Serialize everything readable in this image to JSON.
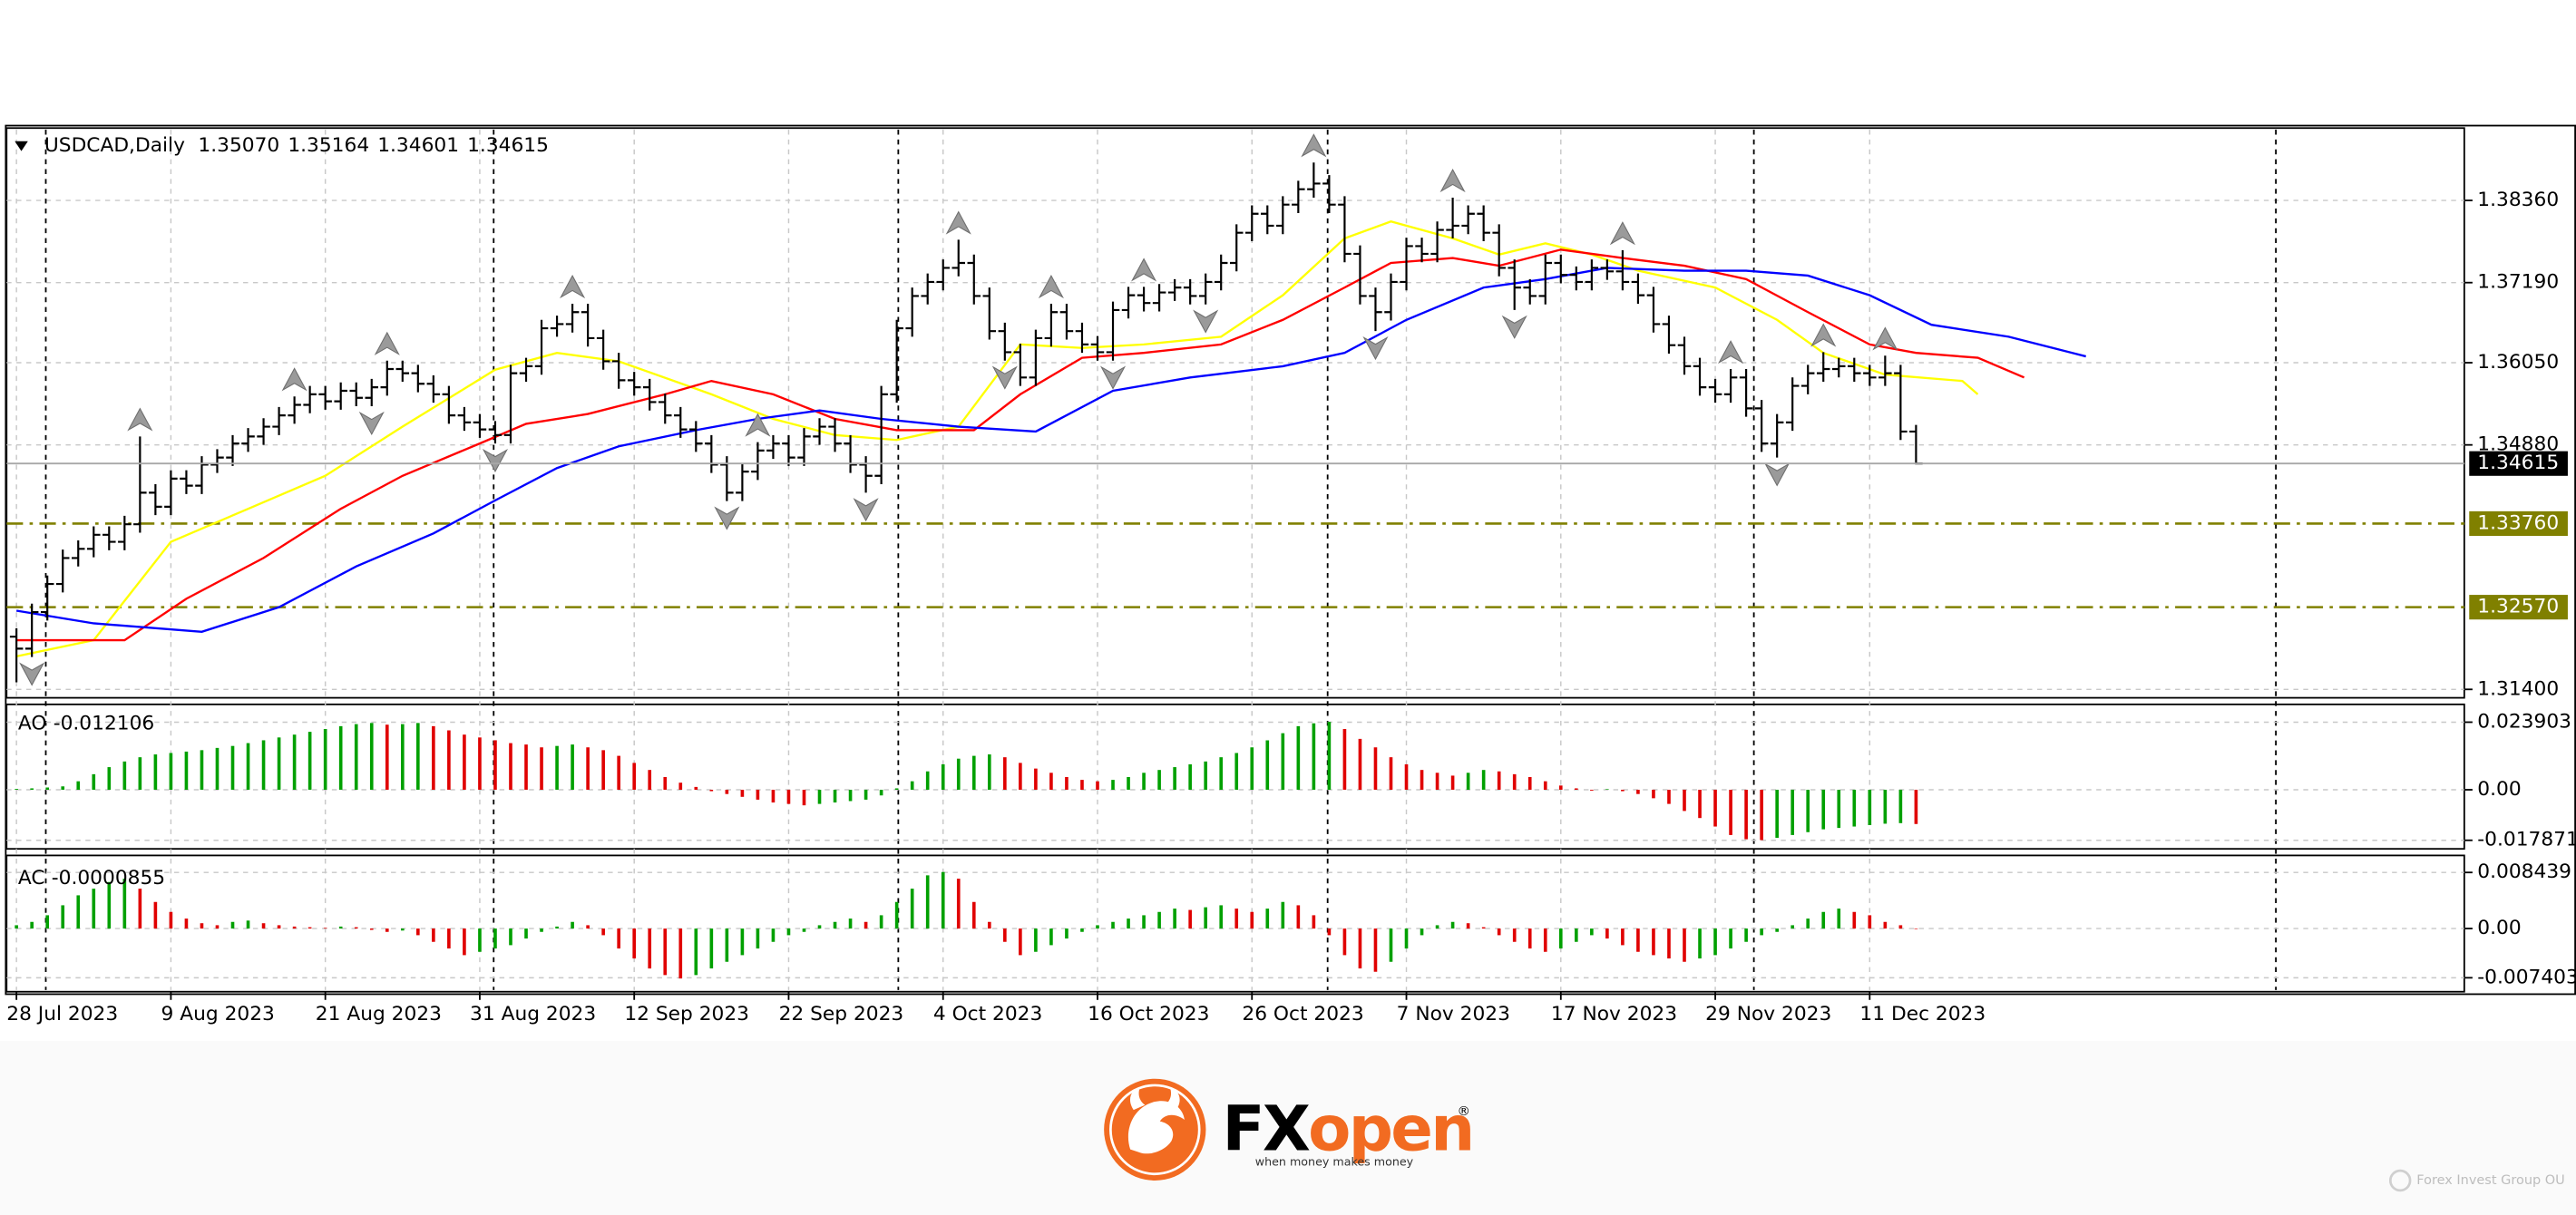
{
  "chart_data": {
    "type": "ohlc",
    "legend_text": "USDCAD,Daily",
    "ohlc_labels": [
      "1.35070",
      "1.35164",
      "1.34601",
      "1.34615"
    ],
    "xlim": [
      -0.64,
      158.5
    ],
    "ylim": [
      1.3128,
      1.3939
    ],
    "yticks": [
      {
        "value": 1.3836,
        "label": "1.38360"
      },
      {
        "value": 1.3719,
        "label": "1.37190"
      },
      {
        "value": 1.3605,
        "label": "1.36050"
      },
      {
        "value": 1.3488,
        "label": "1.34880"
      },
      {
        "value": 1.314,
        "label": "1.31400"
      }
    ],
    "grid": true,
    "x_labels": [
      {
        "value": 0,
        "label": "28 Jul 2023"
      },
      {
        "value": 10,
        "label": "9 Aug 2023"
      },
      {
        "value": 20,
        "label": "21 Aug 2023"
      },
      {
        "value": 30,
        "label": "31 Aug 2023"
      },
      {
        "value": 40,
        "label": "12 Sep 2023"
      },
      {
        "value": 50,
        "label": "22 Sep 2023"
      },
      {
        "value": 60,
        "label": "4 Oct 2023"
      },
      {
        "value": 70,
        "label": "16 Oct 2023"
      },
      {
        "value": 80,
        "label": "26 Oct 2023"
      },
      {
        "value": 90,
        "label": "7 Nov 2023"
      },
      {
        "value": 100,
        "label": "17 Nov 2023"
      },
      {
        "value": 110,
        "label": "29 Nov 2023"
      },
      {
        "value": 120,
        "label": "11 Dec 2023"
      }
    ],
    "separators": [
      1.9,
      30.9,
      57.1,
      84.9,
      112.5,
      146.3
    ],
    "bars": {
      "color": "#000000",
      "open": [
        1.3215,
        1.3198,
        1.325,
        1.329,
        1.3327,
        1.334,
        1.336,
        1.335,
        1.3375,
        1.342,
        1.34,
        1.344,
        1.343,
        1.346,
        1.347,
        1.349,
        1.35,
        1.3514,
        1.353,
        1.3545,
        1.356,
        1.355,
        1.3565,
        1.3555,
        1.357,
        1.3596,
        1.359,
        1.3575,
        1.356,
        1.353,
        1.352,
        1.351,
        1.3502,
        1.359,
        1.36,
        1.3654,
        1.366,
        1.3677,
        1.364,
        1.3607,
        1.358,
        1.357,
        1.3549,
        1.353,
        1.351,
        1.349,
        1.346,
        1.342,
        1.345,
        1.348,
        1.349,
        1.347,
        1.35,
        1.3514,
        1.349,
        1.346,
        1.3444,
        1.356,
        1.3654,
        1.37,
        1.372,
        1.374,
        1.3747,
        1.37,
        1.365,
        1.362,
        1.3584,
        1.364,
        1.3677,
        1.365,
        1.3631,
        1.362,
        1.368,
        1.3701,
        1.369,
        1.3705,
        1.3712,
        1.37,
        1.372,
        1.3747,
        1.379,
        1.3817,
        1.38,
        1.383,
        1.3852,
        1.386,
        1.383,
        1.376,
        1.37,
        1.3677,
        1.372,
        1.3771,
        1.376,
        1.3794,
        1.38,
        1.3817,
        1.379,
        1.374,
        1.3712,
        1.37,
        1.3747,
        1.373,
        1.372,
        1.374,
        1.3735,
        1.372,
        1.3701,
        1.366,
        1.363,
        1.36,
        1.357,
        1.356,
        1.3584,
        1.354,
        1.349,
        1.352,
        1.3572,
        1.359,
        1.3596,
        1.36,
        1.359,
        1.3584,
        1.359,
        1.3507
      ],
      "high": [
        1.3227,
        1.3262,
        1.3302,
        1.3339,
        1.3352,
        1.3372,
        1.3372,
        1.3387,
        1.35,
        1.3432,
        1.3452,
        1.3452,
        1.3472,
        1.3482,
        1.3502,
        1.3512,
        1.3526,
        1.3542,
        1.3557,
        1.3572,
        1.3572,
        1.3577,
        1.3577,
        1.3582,
        1.3608,
        1.3608,
        1.3602,
        1.3587,
        1.3572,
        1.3542,
        1.3532,
        1.3522,
        1.3602,
        1.3612,
        1.3666,
        1.3672,
        1.3689,
        1.3689,
        1.3652,
        1.3619,
        1.3592,
        1.3582,
        1.3561,
        1.3542,
        1.3522,
        1.3502,
        1.3472,
        1.3462,
        1.3492,
        1.3502,
        1.3502,
        1.3512,
        1.3526,
        1.3526,
        1.3502,
        1.3472,
        1.3572,
        1.3666,
        1.3712,
        1.3732,
        1.3752,
        1.378,
        1.3759,
        1.3712,
        1.3662,
        1.3632,
        1.3652,
        1.3689,
        1.3689,
        1.3662,
        1.3643,
        1.3692,
        1.3713,
        1.3713,
        1.3717,
        1.3724,
        1.3724,
        1.3732,
        1.3759,
        1.3802,
        1.3829,
        1.3829,
        1.3842,
        1.3864,
        1.389,
        1.3872,
        1.3842,
        1.3772,
        1.3712,
        1.3732,
        1.3783,
        1.3783,
        1.3806,
        1.384,
        1.3829,
        1.3829,
        1.3802,
        1.3752,
        1.3724,
        1.3759,
        1.3759,
        1.3742,
        1.3752,
        1.3752,
        1.3765,
        1.3732,
        1.3713,
        1.3672,
        1.3642,
        1.3612,
        1.3582,
        1.3596,
        1.3596,
        1.3552,
        1.3532,
        1.3584,
        1.3602,
        1.362,
        1.3612,
        1.3612,
        1.3602,
        1.3615,
        1.3602,
        1.35164
      ],
      "low": [
        1.315,
        1.3186,
        1.3238,
        1.3278,
        1.3315,
        1.3328,
        1.3338,
        1.3338,
        1.3363,
        1.3388,
        1.3388,
        1.3418,
        1.3418,
        1.3448,
        1.3458,
        1.3478,
        1.3488,
        1.3502,
        1.3518,
        1.3533,
        1.3538,
        1.3538,
        1.3543,
        1.3543,
        1.3558,
        1.3578,
        1.3563,
        1.3548,
        1.3518,
        1.3508,
        1.3498,
        1.349,
        1.349,
        1.3578,
        1.3588,
        1.3642,
        1.3648,
        1.3628,
        1.3595,
        1.3568,
        1.3558,
        1.3537,
        1.3518,
        1.3498,
        1.3478,
        1.3448,
        1.3408,
        1.3408,
        1.3438,
        1.3468,
        1.3458,
        1.3458,
        1.3488,
        1.3478,
        1.3448,
        1.342,
        1.3432,
        1.3548,
        1.3642,
        1.3688,
        1.3708,
        1.3728,
        1.3688,
        1.3638,
        1.3608,
        1.3572,
        1.3572,
        1.3628,
        1.3638,
        1.3619,
        1.3608,
        1.3608,
        1.3668,
        1.3678,
        1.3678,
        1.3693,
        1.3688,
        1.3688,
        1.3708,
        1.3735,
        1.3778,
        1.3788,
        1.3788,
        1.3818,
        1.384,
        1.3818,
        1.3748,
        1.3688,
        1.365,
        1.3665,
        1.3708,
        1.3748,
        1.3748,
        1.3782,
        1.3788,
        1.3778,
        1.3728,
        1.368,
        1.3688,
        1.3688,
        1.3718,
        1.3708,
        1.3708,
        1.3723,
        1.3708,
        1.3689,
        1.3648,
        1.3618,
        1.3588,
        1.3558,
        1.3548,
        1.3548,
        1.3528,
        1.3478,
        1.347,
        1.3508,
        1.356,
        1.3578,
        1.3584,
        1.3578,
        1.3572,
        1.3572,
        1.3495,
        1.34601
      ],
      "close": [
        1.3198,
        1.325,
        1.329,
        1.3327,
        1.334,
        1.336,
        1.335,
        1.3375,
        1.342,
        1.34,
        1.344,
        1.343,
        1.346,
        1.347,
        1.349,
        1.35,
        1.3514,
        1.353,
        1.3545,
        1.356,
        1.355,
        1.3565,
        1.3555,
        1.357,
        1.3596,
        1.359,
        1.3575,
        1.356,
        1.353,
        1.352,
        1.351,
        1.3502,
        1.359,
        1.36,
        1.3654,
        1.366,
        1.3677,
        1.364,
        1.3607,
        1.358,
        1.357,
        1.3549,
        1.353,
        1.351,
        1.349,
        1.346,
        1.342,
        1.345,
        1.348,
        1.349,
        1.347,
        1.35,
        1.3514,
        1.349,
        1.346,
        1.3444,
        1.356,
        1.3654,
        1.37,
        1.372,
        1.374,
        1.3747,
        1.37,
        1.365,
        1.362,
        1.3584,
        1.364,
        1.3677,
        1.365,
        1.3631,
        1.362,
        1.368,
        1.3701,
        1.369,
        1.3705,
        1.3712,
        1.37,
        1.372,
        1.3747,
        1.379,
        1.3817,
        1.38,
        1.383,
        1.3852,
        1.386,
        1.383,
        1.376,
        1.37,
        1.3677,
        1.372,
        1.3771,
        1.376,
        1.3794,
        1.38,
        1.3817,
        1.379,
        1.374,
        1.3712,
        1.37,
        1.3747,
        1.373,
        1.372,
        1.374,
        1.3735,
        1.372,
        1.3701,
        1.366,
        1.363,
        1.36,
        1.357,
        1.356,
        1.3584,
        1.354,
        1.349,
        1.352,
        1.3572,
        1.359,
        1.3596,
        1.36,
        1.359,
        1.3584,
        1.359,
        1.3507,
        1.34615
      ]
    },
    "current_price": {
      "value": 1.34615,
      "label": "1.34615"
    },
    "levels": [
      {
        "value": 1.3376,
        "label": "1.33760"
      },
      {
        "value": 1.3257,
        "label": "1.32570"
      }
    ],
    "level_color": "#808000",
    "moving_averages": [
      {
        "color": "#ffff00",
        "x": [
          0,
          5,
          10,
          15,
          20,
          25,
          31,
          35,
          39,
          45,
          49,
          53,
          57,
          61,
          65,
          69,
          73,
          78,
          82,
          86,
          89,
          93,
          96,
          99,
          102,
          105,
          110,
          114,
          117,
          121,
          126,
          127
        ],
        "values": [
          1.3187,
          1.321,
          1.335,
          1.3397,
          1.3444,
          1.3514,
          1.3595,
          1.3619,
          1.3607,
          1.356,
          1.3525,
          1.3502,
          1.3495,
          1.3514,
          1.3631,
          1.3626,
          1.3631,
          1.3642,
          1.3701,
          1.3782,
          1.3806,
          1.3782,
          1.3759,
          1.3775,
          1.3759,
          1.3736,
          1.3712,
          1.3666,
          1.3619,
          1.3588,
          1.3579,
          1.356
        ]
      },
      {
        "color": "#ff0000",
        "x": [
          0,
          7,
          11,
          16,
          21,
          25,
          30,
          33,
          37,
          42,
          45,
          49,
          53,
          57,
          62,
          65,
          69,
          73,
          78,
          82,
          86,
          89,
          93,
          96,
          100,
          104,
          108,
          112,
          116,
          120,
          123,
          127,
          130
        ],
        "values": [
          1.321,
          1.321,
          1.3269,
          1.3327,
          1.3397,
          1.3444,
          1.349,
          1.3518,
          1.3532,
          1.356,
          1.3579,
          1.356,
          1.3525,
          1.3509,
          1.3509,
          1.356,
          1.3612,
          1.3619,
          1.3631,
          1.3666,
          1.3712,
          1.3747,
          1.3754,
          1.3743,
          1.3766,
          1.3754,
          1.3743,
          1.3724,
          1.3677,
          1.3631,
          1.3619,
          1.3612,
          1.3584
        ]
      },
      {
        "color": "#0000ff",
        "x": [
          0,
          5,
          12,
          17,
          22,
          27,
          31,
          35,
          39,
          44,
          48,
          52,
          56,
          61,
          66,
          71,
          76,
          82,
          86,
          90,
          95,
          99,
          103,
          108,
          112,
          116,
          120,
          124,
          129,
          134
        ],
        "values": [
          1.3252,
          1.3234,
          1.3222,
          1.3257,
          1.3315,
          1.3362,
          1.3409,
          1.3455,
          1.3486,
          1.3509,
          1.3525,
          1.3537,
          1.3525,
          1.3514,
          1.3507,
          1.3565,
          1.3584,
          1.36,
          1.3619,
          1.3666,
          1.3712,
          1.3724,
          1.374,
          1.3736,
          1.3736,
          1.3729,
          1.3701,
          1.3659,
          1.3642,
          1.3614
        ]
      }
    ],
    "fractals": {
      "color": "#9a9a9a",
      "up": [
        8,
        18,
        24,
        36,
        48,
        61,
        67,
        73,
        84,
        93,
        104,
        111,
        117,
        121
      ],
      "down": [
        1,
        23,
        31,
        46,
        55,
        64,
        71,
        77,
        88,
        97,
        114
      ]
    },
    "ao": {
      "name": "AO",
      "value_label": "-0.012106",
      "up_color": "#00a000",
      "down_color": "#e00000",
      "ylim": [
        -0.0209,
        0.0302
      ],
      "yticks": [
        0.023903,
        {
          "value": 0,
          "label": "0.00"
        },
        -0.017871
      ],
      "values": [
        0.0003,
        0.0005,
        0.0008,
        0.0012,
        0.003,
        0.0055,
        0.008,
        0.01,
        0.0115,
        0.0125,
        0.013,
        0.0135,
        0.014,
        0.0148,
        0.0155,
        0.0165,
        0.0175,
        0.0185,
        0.0195,
        0.0205,
        0.0215,
        0.0225,
        0.0232,
        0.0236,
        0.023,
        0.0232,
        0.0236,
        0.0225,
        0.021,
        0.0195,
        0.0185,
        0.0175,
        0.0165,
        0.016,
        0.015,
        0.0155,
        0.016,
        0.015,
        0.014,
        0.012,
        0.0095,
        0.007,
        0.0045,
        0.0025,
        0.001,
        -0.0005,
        -0.0015,
        -0.0025,
        -0.0035,
        -0.0045,
        -0.005,
        -0.0055,
        -0.005,
        -0.0045,
        -0.004,
        -0.0035,
        -0.002,
        0.0005,
        0.003,
        0.0065,
        0.009,
        0.011,
        0.012,
        0.0125,
        0.0115,
        0.0095,
        0.0075,
        0.006,
        0.0045,
        0.0035,
        0.003,
        0.0035,
        0.0045,
        0.006,
        0.007,
        0.008,
        0.009,
        0.01,
        0.0115,
        0.013,
        0.015,
        0.0175,
        0.02,
        0.0225,
        0.0235,
        0.024,
        0.0215,
        0.018,
        0.015,
        0.0115,
        0.009,
        0.007,
        0.006,
        0.005,
        0.006,
        0.007,
        0.0065,
        0.0055,
        0.0045,
        0.003,
        0.0015,
        0.0005,
        -0.0003,
        0.0002,
        -0.0005,
        -0.0015,
        -0.003,
        -0.005,
        -0.0075,
        -0.01,
        -0.013,
        -0.016,
        -0.0175,
        -0.0178,
        -0.017,
        -0.016,
        -0.015,
        -0.014,
        -0.0135,
        -0.013,
        -0.0125,
        -0.012,
        -0.0118,
        -0.012106
      ]
    },
    "ac": {
      "name": "AC",
      "value_label": "-0.0000855",
      "up_color": "#00a000",
      "down_color": "#e00000",
      "ylim": [
        -0.0095,
        0.011
      ],
      "yticks": [
        0.008439,
        {
          "value": 0,
          "label": "0.00"
        },
        -0.007403
      ],
      "values": [
        0.0005,
        0.001,
        0.002,
        0.0035,
        0.005,
        0.006,
        0.007,
        0.0075,
        0.006,
        0.004,
        0.0025,
        0.0015,
        0.0008,
        0.0005,
        0.001,
        0.0012,
        0.0008,
        0.0005,
        0.0003,
        0.0002,
        0.0001,
        0.0003,
        0.0002,
        -0.0002,
        -0.0005,
        -0.0003,
        -0.001,
        -0.002,
        -0.003,
        -0.004,
        -0.0035,
        -0.003,
        -0.0025,
        -0.0015,
        -0.0005,
        0.0003,
        0.001,
        0.0005,
        -0.001,
        -0.003,
        -0.0045,
        -0.006,
        -0.007,
        -0.0075,
        -0.007,
        -0.006,
        -0.005,
        -0.004,
        -0.003,
        -0.002,
        -0.001,
        -0.0005,
        0.0005,
        0.001,
        0.0015,
        0.001,
        0.002,
        0.004,
        0.006,
        0.008,
        0.0085,
        0.0075,
        0.004,
        0.001,
        -0.002,
        -0.004,
        -0.0035,
        -0.0025,
        -0.0015,
        -0.0005,
        0.0005,
        0.001,
        0.0015,
        0.002,
        0.0025,
        0.003,
        0.0028,
        0.0032,
        0.0035,
        0.003,
        0.0025,
        0.003,
        0.004,
        0.0035,
        0.002,
        -0.001,
        -0.004,
        -0.006,
        -0.0065,
        -0.005,
        -0.003,
        -0.001,
        0.0005,
        0.001,
        0.0008,
        0.0002,
        -0.001,
        -0.002,
        -0.003,
        -0.0035,
        -0.003,
        -0.002,
        -0.001,
        -0.0015,
        -0.0025,
        -0.0035,
        -0.004,
        -0.0045,
        -0.005,
        -0.0045,
        -0.004,
        -0.003,
        -0.002,
        -0.001,
        -0.0005,
        0.0005,
        0.0015,
        0.0025,
        0.003,
        0.0025,
        0.002,
        0.001,
        0.0005,
        -8.55e-05
      ]
    }
  },
  "footer": {
    "brand_fx": "FX",
    "brand_open": "open",
    "registered": "®",
    "tagline": "when money makes money",
    "company": "Forex Invest Group OU"
  }
}
